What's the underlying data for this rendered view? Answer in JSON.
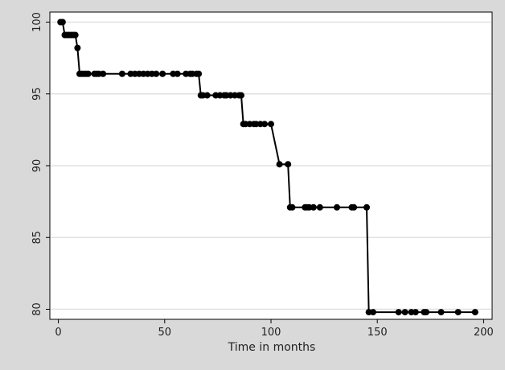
{
  "chart_data": {
    "type": "line",
    "x_label": "Time in months",
    "x": [
      1,
      2,
      3,
      4,
      5,
      6,
      7,
      8,
      9,
      10,
      11,
      12,
      13,
      14,
      17,
      18,
      19,
      21,
      30,
      34,
      36,
      38,
      40,
      42,
      44,
      46,
      49,
      54,
      56,
      60,
      62,
      63,
      65,
      66,
      67,
      68,
      70,
      74,
      76,
      78,
      79,
      81,
      83,
      85,
      86,
      87,
      88,
      90,
      92,
      93,
      95,
      97,
      100,
      104,
      108,
      109,
      110,
      116,
      117,
      118,
      120,
      123,
      131,
      138,
      139,
      145,
      146,
      148,
      160,
      163,
      166,
      168,
      172,
      173,
      180,
      188,
      196
    ],
    "values": [
      100,
      100,
      99.1,
      99.1,
      99.1,
      99.1,
      99.1,
      99.1,
      98.2,
      96.4,
      96.4,
      96.4,
      96.4,
      96.4,
      96.4,
      96.4,
      96.4,
      96.4,
      96.4,
      96.4,
      96.4,
      96.4,
      96.4,
      96.4,
      96.4,
      96.4,
      96.4,
      96.4,
      96.4,
      96.4,
      96.4,
      96.4,
      96.4,
      96.4,
      94.9,
      94.9,
      94.9,
      94.9,
      94.9,
      94.9,
      94.9,
      94.9,
      94.9,
      94.9,
      94.9,
      92.9,
      92.9,
      92.9,
      92.9,
      92.9,
      92.9,
      92.9,
      92.9,
      90.1,
      90.1,
      87.1,
      87.1,
      87.1,
      87.1,
      87.1,
      87.1,
      87.1,
      87.1,
      87.1,
      87.1,
      87.1,
      79.8,
      79.8,
      79.8,
      79.8,
      79.8,
      79.8,
      79.8,
      79.8,
      79.8,
      79.8,
      79.8
    ],
    "color": "#000000",
    "xlim": [
      -4,
      204
    ],
    "ylim": [
      79.3,
      100.7
    ],
    "xticks": [
      0,
      50,
      100,
      150,
      200
    ],
    "yticks": [
      80,
      85,
      90,
      95,
      100
    ],
    "grid": true
  }
}
